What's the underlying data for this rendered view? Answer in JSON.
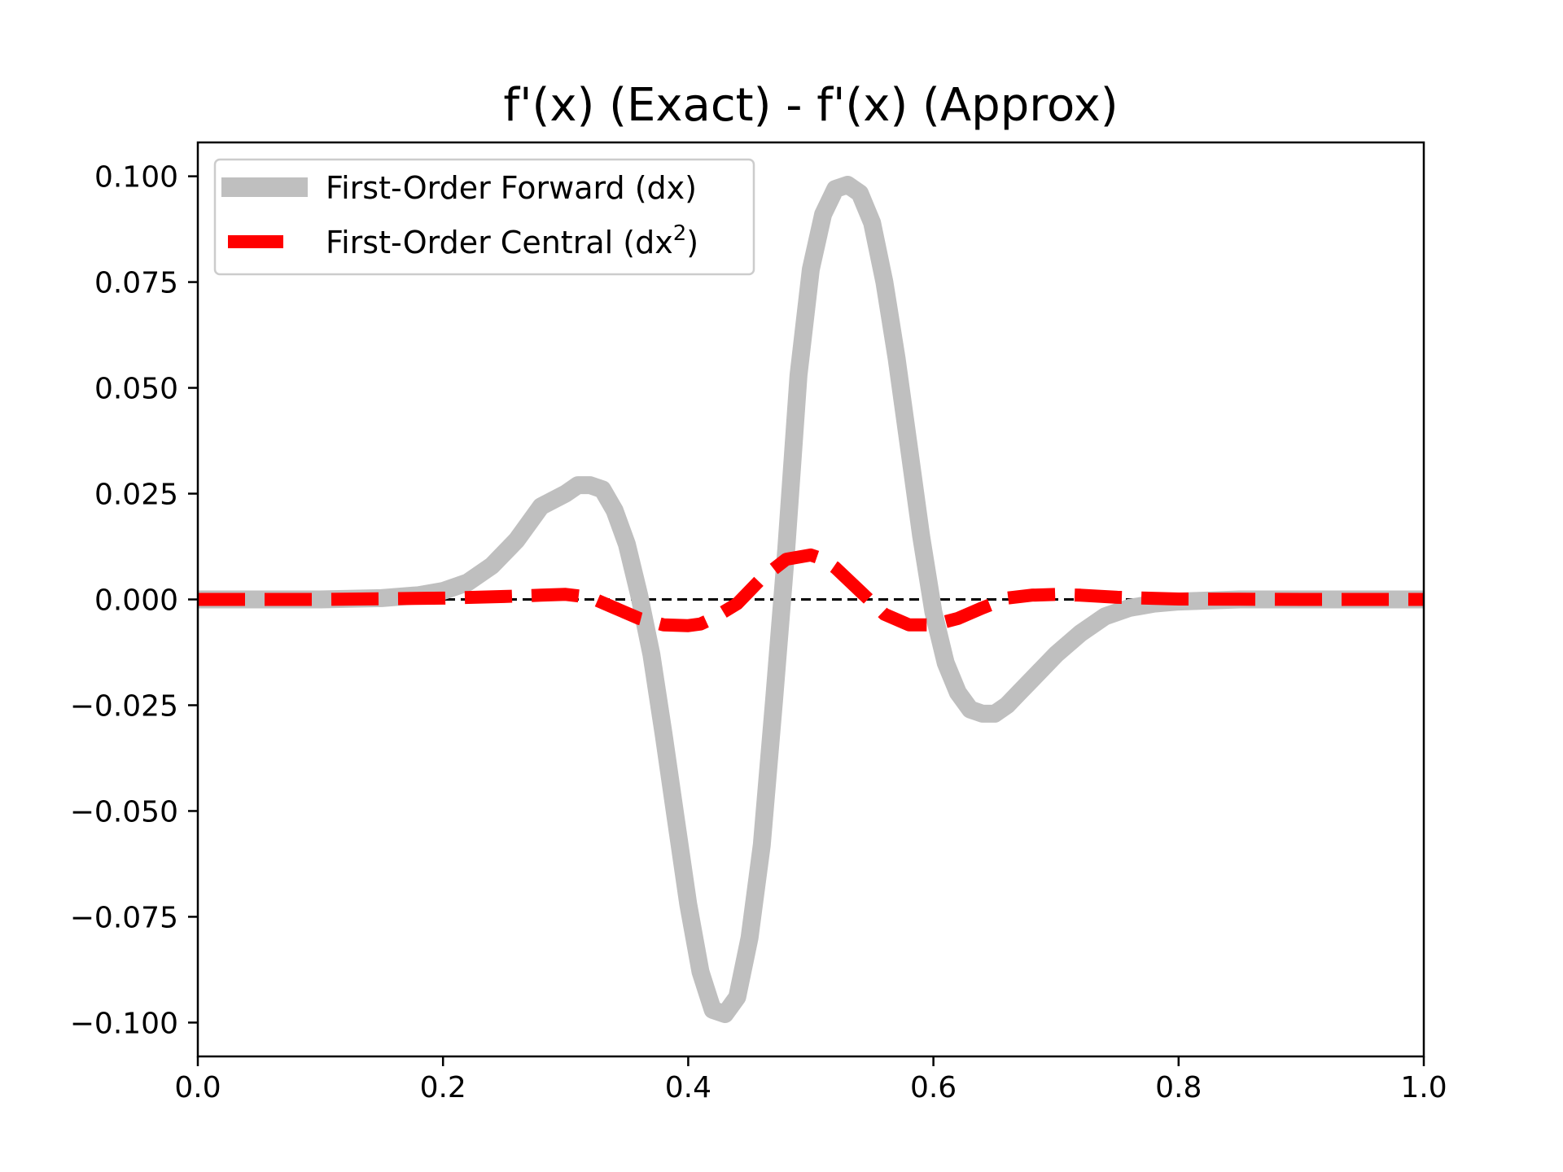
{
  "chart_data": {
    "type": "line",
    "title": "f'(x) (Exact) - f'(x) (Approx)",
    "xlabel": "",
    "ylabel": "",
    "xlim": [
      0.0,
      1.0
    ],
    "ylim": [
      -0.108,
      0.108
    ],
    "grid": false,
    "legend_position": "top-left",
    "x_ticks": [
      0.0,
      0.2,
      0.4,
      0.6,
      0.8,
      1.0
    ],
    "x_tick_labels": [
      "0.0",
      "0.2",
      "0.4",
      "0.6",
      "0.8",
      "1.0"
    ],
    "y_ticks": [
      0.1,
      0.075,
      0.05,
      0.025,
      0.0,
      -0.025,
      -0.05,
      -0.075,
      -0.1
    ],
    "y_tick_labels": [
      "0.100",
      "0.075",
      "0.050",
      "0.025",
      "0.000",
      "−0.025",
      "−0.050",
      "−0.075",
      "−0.100"
    ],
    "reference_line": {
      "y": 0.0,
      "color": "#000000",
      "style": "dashed"
    },
    "series": [
      {
        "name": "First-Order Forward (dx)",
        "color": "#bfbfbf",
        "style": "solid",
        "x": [
          0.0,
          0.05,
          0.1,
          0.15,
          0.18,
          0.2,
          0.22,
          0.24,
          0.26,
          0.28,
          0.3,
          0.31,
          0.32,
          0.33,
          0.34,
          0.35,
          0.36,
          0.37,
          0.38,
          0.39,
          0.4,
          0.41,
          0.42,
          0.43,
          0.44,
          0.45,
          0.46,
          0.47,
          0.48,
          0.49,
          0.5,
          0.51,
          0.52,
          0.53,
          0.54,
          0.55,
          0.56,
          0.57,
          0.58,
          0.59,
          0.6,
          0.61,
          0.62,
          0.63,
          0.64,
          0.65,
          0.66,
          0.67,
          0.68,
          0.7,
          0.72,
          0.74,
          0.76,
          0.78,
          0.8,
          0.85,
          0.9,
          1.0
        ],
        "y": [
          0.0,
          0.0,
          0.0,
          0.0003,
          0.001,
          0.002,
          0.004,
          0.008,
          0.014,
          0.022,
          0.025,
          0.027,
          0.027,
          0.026,
          0.021,
          0.013,
          0.001,
          -0.013,
          -0.032,
          -0.052,
          -0.072,
          -0.088,
          -0.097,
          -0.098,
          -0.094,
          -0.08,
          -0.058,
          -0.024,
          0.012,
          0.053,
          0.078,
          0.091,
          0.097,
          0.098,
          0.096,
          0.089,
          0.075,
          0.057,
          0.036,
          0.015,
          -0.003,
          -0.015,
          -0.022,
          -0.026,
          -0.027,
          -0.027,
          -0.025,
          -0.022,
          -0.019,
          -0.013,
          -0.008,
          -0.004,
          -0.002,
          -0.001,
          -0.0005,
          0.0,
          0.0,
          0.0
        ]
      },
      {
        "name": "First-Order Central (dx²)",
        "color": "#ff0000",
        "style": "dashed",
        "x": [
          0.0,
          0.1,
          0.2,
          0.25,
          0.28,
          0.3,
          0.32,
          0.34,
          0.36,
          0.38,
          0.4,
          0.41,
          0.42,
          0.44,
          0.46,
          0.48,
          0.5,
          0.51,
          0.52,
          0.54,
          0.56,
          0.58,
          0.6,
          0.62,
          0.64,
          0.66,
          0.68,
          0.7,
          0.72,
          0.75,
          0.8,
          0.9,
          1.0
        ],
        "y": [
          0.0,
          0.0,
          0.0003,
          0.0007,
          0.001,
          0.0012,
          0.0005,
          -0.002,
          -0.0045,
          -0.006,
          -0.0062,
          -0.0058,
          -0.0045,
          -0.001,
          0.005,
          0.0095,
          0.0105,
          0.0095,
          0.0075,
          0.002,
          -0.0035,
          -0.006,
          -0.006,
          -0.0045,
          -0.002,
          0.0003,
          0.001,
          0.0012,
          0.001,
          0.0005,
          0.0001,
          0.0,
          0.0
        ]
      }
    ]
  }
}
